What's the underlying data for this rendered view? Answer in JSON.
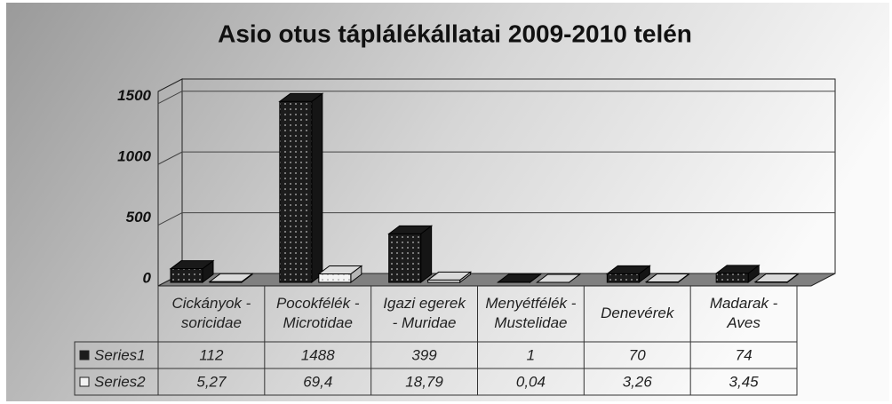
{
  "chart_data": {
    "type": "bar3d",
    "title": "Asio otus táplálékállatai 2009-2010 telén",
    "categories": [
      [
        "Cickányok -",
        "soricidae"
      ],
      [
        "Pocokfélék -",
        "Microtidae"
      ],
      [
        "Igazi egerek",
        "- Muridae"
      ],
      [
        "Menyétfélék -",
        "Mustelidae"
      ],
      [
        "Denevérek"
      ],
      [
        "Madarak -",
        "Aves"
      ]
    ],
    "series": [
      {
        "name": "Series1",
        "color": "#1c1c1c",
        "values": [
          112,
          1488,
          399,
          1,
          70,
          74
        ]
      },
      {
        "name": "Series2",
        "color": "#f2f2f2",
        "values": [
          5.27,
          69.4,
          18.79,
          0.04,
          3.26,
          3.45
        ],
        "value_labels": [
          "5,27",
          "69,4",
          "18,79",
          "0,04",
          "3,26",
          "3,45"
        ]
      }
    ],
    "ylim": [
      0,
      1600
    ],
    "yticks": [
      0,
      500,
      1000,
      1500
    ],
    "grid": true
  }
}
